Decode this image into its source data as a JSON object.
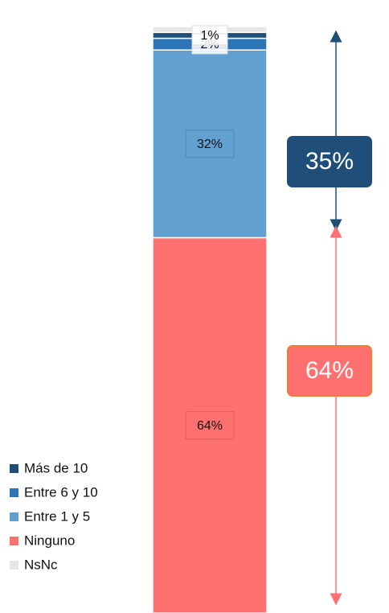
{
  "chart_data": {
    "type": "stacked_bar",
    "series": [
      {
        "name": "Más de 10",
        "color": "#1f4e79",
        "values": [
          1
        ],
        "value_labels": [
          "1%"
        ]
      },
      {
        "name": "Entre 6 y 10",
        "color": "#2e75b6",
        "values": [
          2
        ],
        "value_labels": [
          "2%"
        ]
      },
      {
        "name": "Entre 1 y 5",
        "color": "#62a0d2",
        "values": [
          32
        ],
        "value_labels": [
          "32%"
        ]
      },
      {
        "name": "Ninguno",
        "color": "#ff7171",
        "values": [
          64
        ],
        "value_labels": [
          "64%"
        ]
      },
      {
        "name": "NsNc",
        "color": "#e6e6e6",
        "values": [
          1
        ]
      }
    ],
    "ylim": [
      0,
      100
    ],
    "annotations": [
      {
        "label": "35%",
        "value": 35,
        "color": "#1f4e79"
      },
      {
        "label": "64%",
        "value": 64,
        "color": "#ff7171"
      }
    ]
  }
}
